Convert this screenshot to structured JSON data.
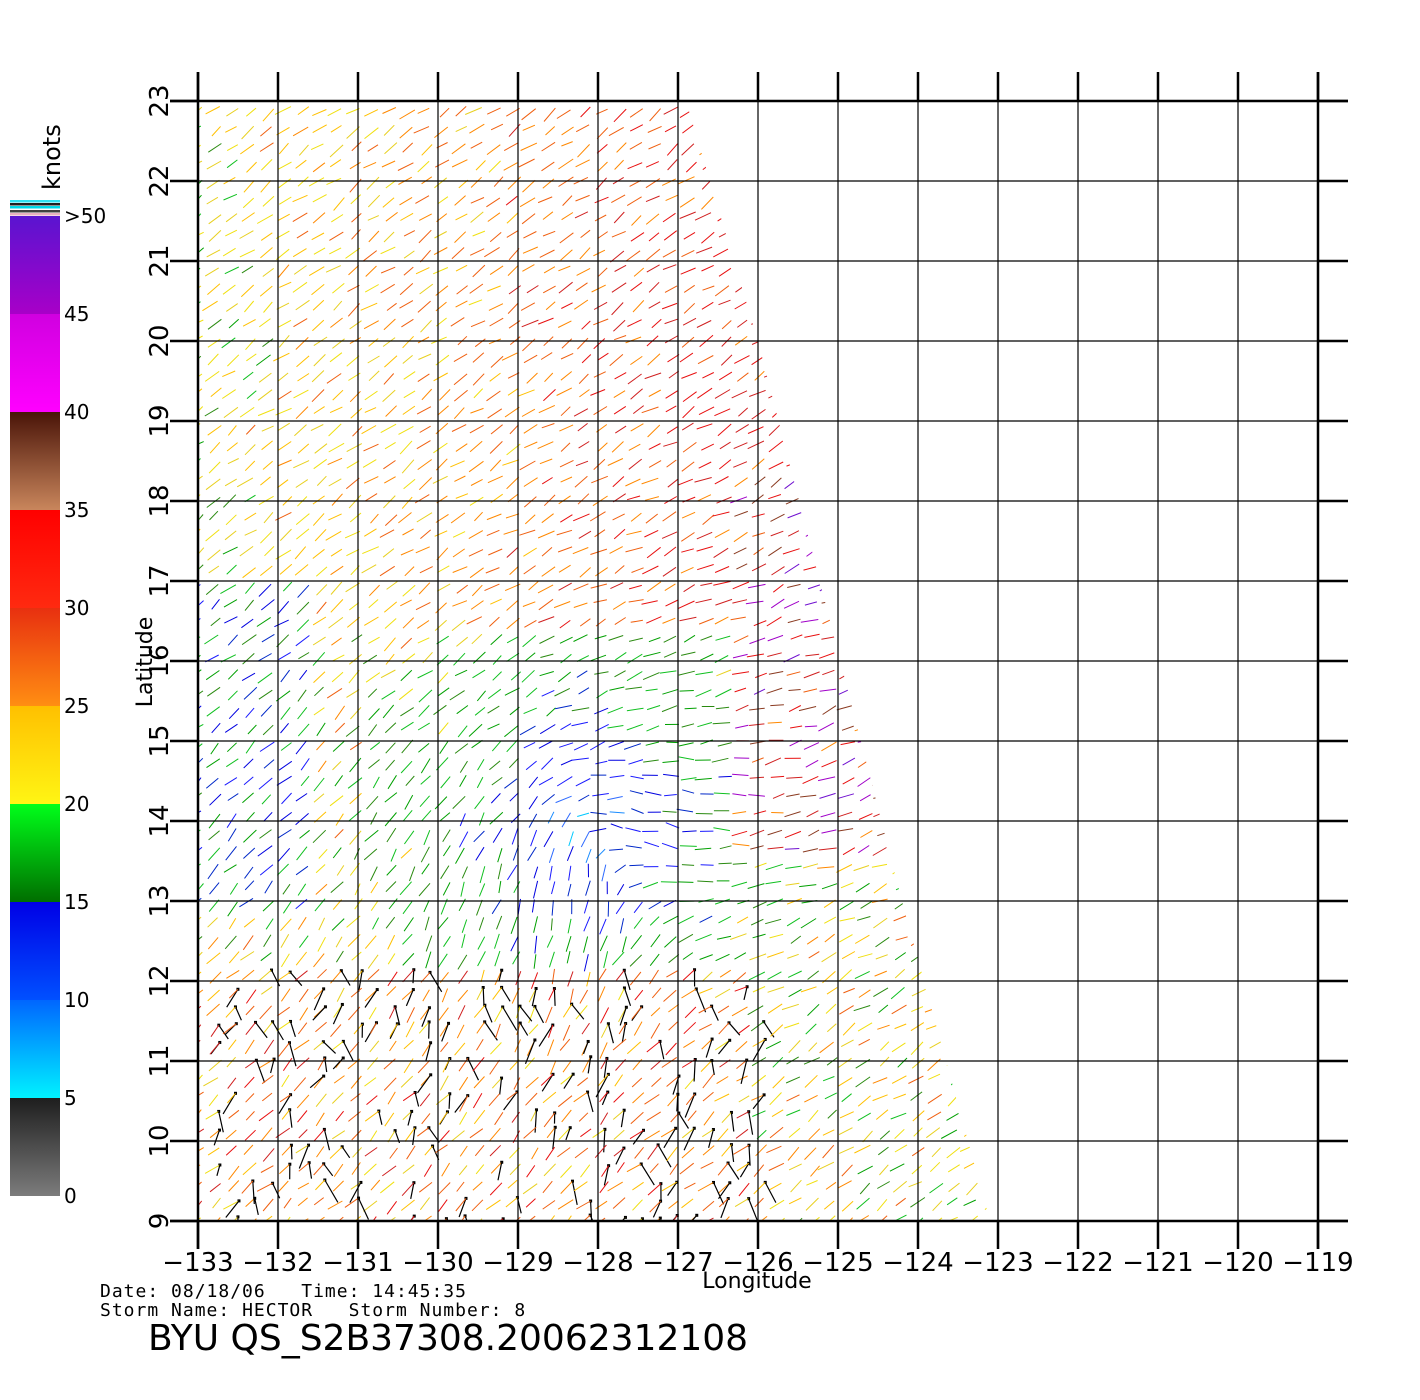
{
  "colorbar": {
    "unit": "knots",
    "ticks": [
      "0",
      "5",
      "10",
      "15",
      "20",
      "25",
      "30",
      "35",
      "40",
      "45",
      ">50"
    ],
    "bands": [
      {
        "from": 0,
        "to": 5,
        "colors": [
          "#7c7c7c",
          "#1e1e1e"
        ]
      },
      {
        "from": 5,
        "to": 10,
        "colors": [
          "#00f2ff",
          "#0066ff"
        ]
      },
      {
        "from": 10,
        "to": 15,
        "colors": [
          "#0050ff",
          "#0000e6"
        ]
      },
      {
        "from": 15,
        "to": 20,
        "colors": [
          "#006e00",
          "#00ff1a"
        ]
      },
      {
        "from": 20,
        "to": 25,
        "colors": [
          "#fff514",
          "#ffc000"
        ]
      },
      {
        "from": 25,
        "to": 30,
        "colors": [
          "#ff8e12",
          "#e83010"
        ]
      },
      {
        "from": 30,
        "to": 35,
        "colors": [
          "#ff2a10",
          "#ff0000"
        ]
      },
      {
        "from": 35,
        "to": 40,
        "colors": [
          "#c9865c",
          "#4a1408"
        ]
      },
      {
        "from": 40,
        "to": 45,
        "colors": [
          "#ff00ff",
          "#d000e0"
        ]
      },
      {
        "from": 45,
        "to": 50,
        "colors": [
          "#a800c8",
          "#5a14d0"
        ]
      }
    ]
  },
  "map": {
    "x_axis": {
      "label": "Longitude",
      "min": -133,
      "max": -119,
      "ticks": [
        "-133",
        "-132",
        "-131",
        "-130",
        "-129",
        "-128",
        "-127",
        "-126",
        "-125",
        "-124",
        "-123",
        "-122",
        "-121",
        "-120",
        "-119"
      ]
    },
    "y_axis": {
      "label": "Latitude",
      "min": 9,
      "max": 23,
      "ticks": [
        "9",
        "10",
        "11",
        "12",
        "13",
        "14",
        "15",
        "16",
        "17",
        "18",
        "19",
        "20",
        "21",
        "22",
        "23"
      ]
    },
    "swath": {
      "polygon": [
        [
          -133.0,
          23.0
        ],
        [
          -126.9,
          23.0
        ],
        [
          -126.0,
          20.0
        ],
        [
          -124.2,
          13.0
        ],
        [
          -123.1,
          9.0
        ],
        [
          -133.0,
          9.0
        ]
      ]
    },
    "wind_field": {
      "storm_center": [
        -128.1,
        14.0
      ],
      "rain_flag_region": {
        "lon": [
          -132.8,
          -125.8
        ],
        "lat": [
          9.0,
          12.3
        ]
      }
    }
  },
  "footer": {
    "date_label": "Date:",
    "date": "08/18/06",
    "time_label": "Time:",
    "time": "14:45:35",
    "storm_name_label": "Storm Name:",
    "storm_name": "HECTOR",
    "storm_number_label": "Storm Number:",
    "storm_number": "8",
    "product_id": "BYU QS_S2B37308.20062312108"
  }
}
